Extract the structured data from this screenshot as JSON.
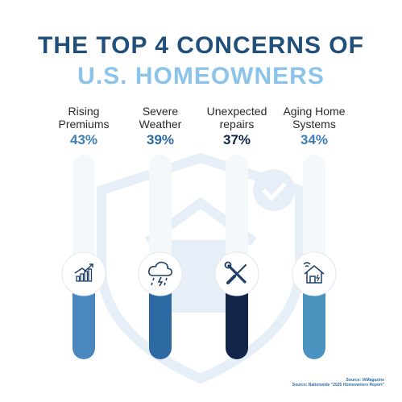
{
  "title_line1": "THE TOP 4 CONCERNS OF",
  "title_line2": "U.S. HOMEOWNERS",
  "colors": {
    "title_dark": "#1f4f7a",
    "title_light": "#8cc3ea",
    "background_shield": "#e7eff7"
  },
  "chart_data": {
    "type": "bar",
    "categories": [
      "Rising Premiums",
      "Severe Weather",
      "Unexpected repairs",
      "Aging Home Systems"
    ],
    "label_lines": [
      [
        "Rising",
        "Premiums"
      ],
      [
        "Severe",
        "Weather"
      ],
      [
        "Unexpected",
        "repairs"
      ],
      [
        "Aging Home",
        "Systems"
      ]
    ],
    "values": [
      43,
      39,
      37,
      34
    ],
    "value_labels": [
      "43%",
      "39%",
      "37%",
      "34%"
    ],
    "colors": [
      "#4a88c0",
      "#2d6aa3",
      "#13264a",
      "#4b93bf"
    ],
    "pct_colors": [
      "#3f7fba",
      "#2d6aa3",
      "#13264a",
      "#3f7fba"
    ],
    "icons": [
      "growth-chart-icon",
      "storm-cloud-icon",
      "wrench-screwdriver-icon",
      "smart-home-icon"
    ],
    "ylim": [
      0,
      100
    ]
  },
  "sources": [
    "Source: IAMagazine",
    "Source: Nationwide \"2025 Homeowners Report\""
  ]
}
